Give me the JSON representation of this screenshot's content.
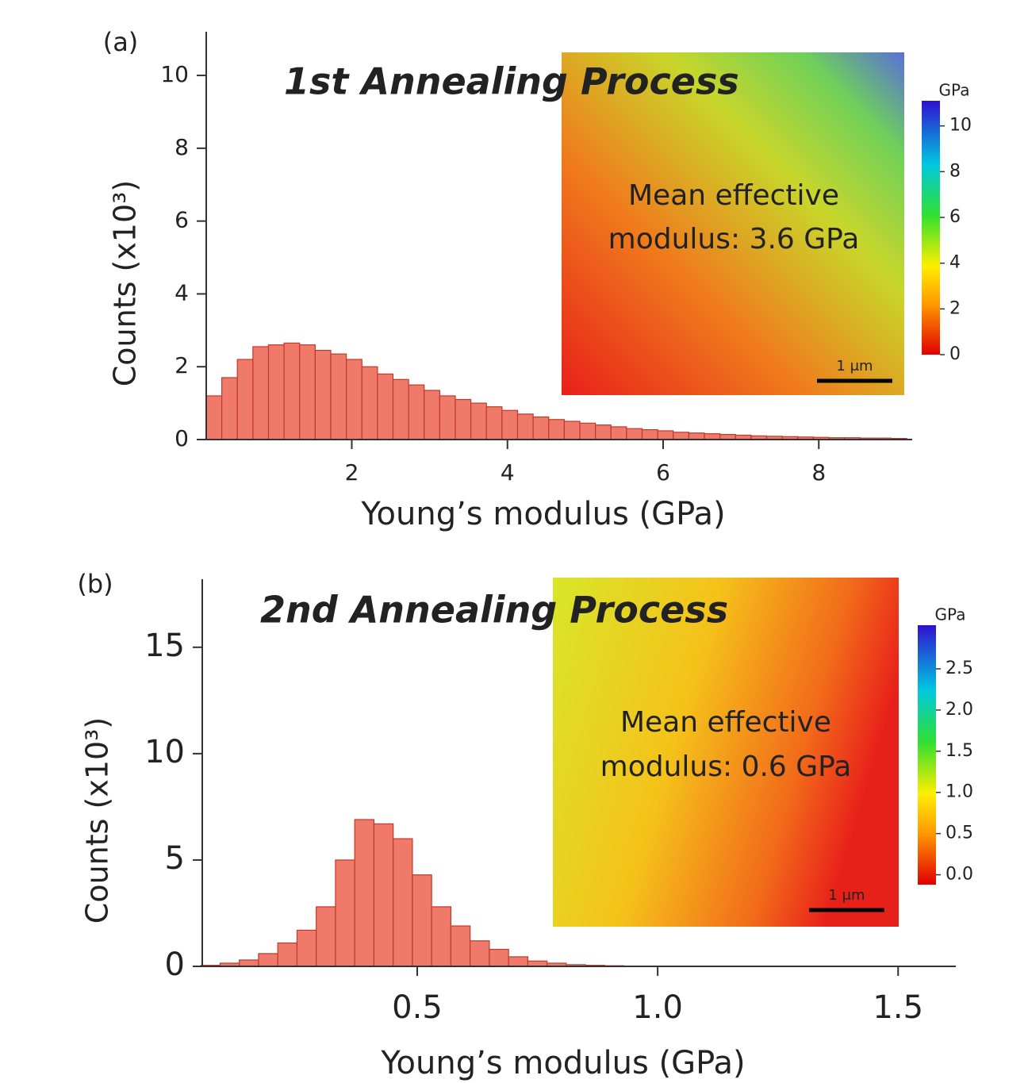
{
  "chart_data": [
    {
      "type": "histogram",
      "panel_label": "(a)",
      "title": "1st Annealing Process",
      "x_label": "Young’s modulus (GPa)",
      "y_label": "Counts (x10³)",
      "bins": [
        0.13,
        0.33,
        0.53,
        0.73,
        0.93,
        1.13,
        1.33,
        1.53,
        1.73,
        1.93,
        2.13,
        2.33,
        2.53,
        2.73,
        2.93,
        3.13,
        3.33,
        3.53,
        3.73,
        3.93,
        4.13,
        4.33,
        4.53,
        4.73,
        4.93,
        5.13,
        5.33,
        5.53,
        5.73,
        5.93,
        6.13,
        6.33,
        6.53,
        6.73,
        6.93,
        7.13,
        7.33,
        7.53,
        7.73,
        7.93,
        8.13,
        8.33,
        8.53,
        8.73,
        8.93,
        9.13
      ],
      "values": [
        1.2,
        1.7,
        2.2,
        2.55,
        2.6,
        2.65,
        2.6,
        2.45,
        2.35,
        2.2,
        2.0,
        1.8,
        1.65,
        1.5,
        1.35,
        1.2,
        1.1,
        1.0,
        0.9,
        0.8,
        0.7,
        0.62,
        0.55,
        0.5,
        0.45,
        0.4,
        0.35,
        0.3,
        0.27,
        0.24,
        0.2,
        0.18,
        0.16,
        0.14,
        0.12,
        0.1,
        0.09,
        0.08,
        0.07,
        0.06,
        0.05,
        0.05,
        0.04,
        0.04,
        0.03
      ],
      "color": "#f07a6a",
      "xlim": [
        0.13,
        9.2
      ],
      "xticks": [
        2,
        4,
        6,
        8
      ],
      "ylim": [
        0,
        11.2
      ],
      "yticks": [
        0,
        2,
        4,
        6,
        8,
        10
      ],
      "inset": {
        "annotation": [
          "Mean effective",
          "modulus: 3.6 GPa"
        ],
        "colorbar_label": "GPa",
        "clim": [
          0,
          11.1
        ],
        "cticks": [
          0,
          2,
          4,
          6,
          8,
          10
        ],
        "scale_bar": "1 μm"
      }
    },
    {
      "type": "histogram",
      "panel_label": "(b)",
      "title": "2nd Annealing Process",
      "x_label": "Young’s modulus (GPa)",
      "y_label": "Counts (x10³)",
      "bins": [
        0.05,
        0.09,
        0.13,
        0.17,
        0.21,
        0.25,
        0.29,
        0.33,
        0.37,
        0.41,
        0.45,
        0.49,
        0.53,
        0.57,
        0.61,
        0.65,
        0.69,
        0.73,
        0.77,
        0.81,
        0.85,
        0.89,
        0.93
      ],
      "values": [
        0.05,
        0.15,
        0.3,
        0.6,
        1.1,
        1.7,
        2.8,
        5.0,
        6.9,
        6.7,
        6.0,
        4.3,
        2.8,
        1.9,
        1.2,
        0.8,
        0.45,
        0.25,
        0.15,
        0.08,
        0.05,
        0.03
      ],
      "color": "#f07a6a",
      "xlim": [
        0.053,
        1.62
      ],
      "xticks": [
        0.5,
        {
          "value": 1,
          "label": "1.0"
        },
        1.5
      ],
      "ylim": [
        0,
        18.2
      ],
      "yticks": [
        0,
        5,
        10,
        15
      ],
      "inset": {
        "annotation": [
          "Mean effective",
          "modulus: 0.6 GPa"
        ],
        "colorbar_label": "GPa",
        "clim": [
          -0.12,
          3.03
        ],
        "cticks": [
          {
            "value": 0,
            "label": "0.0"
          },
          0.5,
          {
            "value": 1,
            "label": "1.0"
          },
          1.5,
          {
            "value": 2,
            "label": "2.0"
          },
          2.5
        ],
        "scale_bar": "1 μm"
      }
    }
  ]
}
